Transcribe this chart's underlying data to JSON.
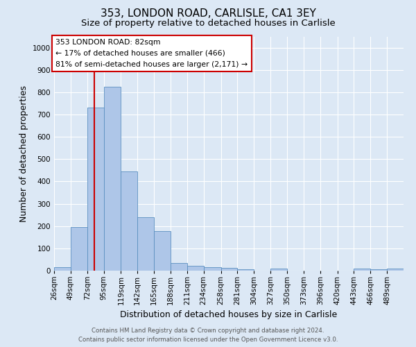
{
  "title1": "353, LONDON ROAD, CARLISLE, CA1 3EY",
  "title2": "Size of property relative to detached houses in Carlisle",
  "xlabel": "Distribution of detached houses by size in Carlisle",
  "ylabel": "Number of detached properties",
  "footer1": "Contains HM Land Registry data © Crown copyright and database right 2024.",
  "footer2": "Contains public sector information licensed under the Open Government Licence v3.0.",
  "annotation_title": "353 LONDON ROAD: 82sqm",
  "annotation_line2": "← 17% of detached houses are smaller (466)",
  "annotation_line3": "81% of semi-detached houses are larger (2,171) →",
  "bar_color": "#aec6e8",
  "bar_edge_color": "#5a8fc0",
  "redline_color": "#cc0000",
  "redline_x": 82,
  "categories": [
    "26sqm",
    "49sqm",
    "72sqm",
    "95sqm",
    "119sqm",
    "142sqm",
    "165sqm",
    "188sqm",
    "211sqm",
    "234sqm",
    "258sqm",
    "281sqm",
    "304sqm",
    "327sqm",
    "350sqm",
    "373sqm",
    "396sqm",
    "420sqm",
    "443sqm",
    "466sqm",
    "489sqm"
  ],
  "bin_edges": [
    26,
    49,
    72,
    95,
    119,
    142,
    165,
    188,
    211,
    234,
    258,
    281,
    304,
    327,
    350,
    373,
    396,
    420,
    443,
    466,
    489,
    512
  ],
  "values": [
    15,
    195,
    730,
    825,
    445,
    240,
    178,
    35,
    22,
    17,
    12,
    5,
    0,
    9,
    0,
    0,
    0,
    0,
    9,
    5,
    8
  ],
  "ylim": [
    0,
    1050
  ],
  "yticks": [
    0,
    100,
    200,
    300,
    400,
    500,
    600,
    700,
    800,
    900,
    1000
  ],
  "bg_color": "#dce8f5",
  "grid_color": "#ffffff",
  "annotation_box_color": "#ffffff",
  "annotation_box_edgecolor": "#cc0000",
  "title_fontsize": 11,
  "subtitle_fontsize": 9.5,
  "tick_fontsize": 7.5,
  "label_fontsize": 9,
  "footer_fontsize": 6.2,
  "annotation_fontsize": 7.8
}
